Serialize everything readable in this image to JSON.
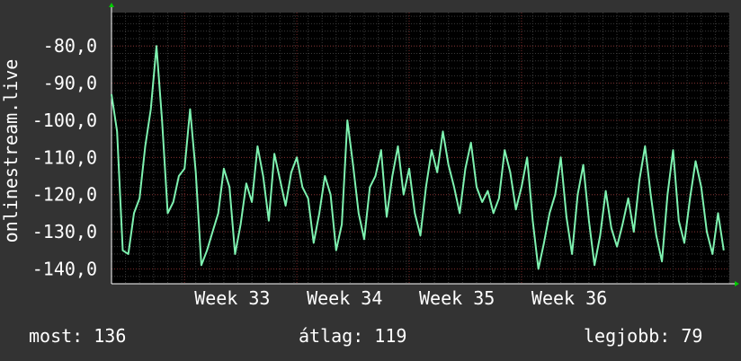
{
  "chart_data": {
    "type": "line",
    "ylabel": "onlinestream.live",
    "ylim": [
      -144,
      -71
    ],
    "y_ticks": [
      -80,
      -90,
      -100,
      -110,
      -120,
      -130,
      -140
    ],
    "y_tick_labels": [
      "-80,0",
      "-90,0",
      "-100,0",
      "-110,0",
      "-120,0",
      "-130,0",
      "-140,0"
    ],
    "x_range": [
      0,
      110
    ],
    "x_ticks": [
      {
        "x": 13,
        "label": "Week 33"
      },
      {
        "x": 33,
        "label": "Week 34"
      },
      {
        "x": 53,
        "label": "Week 35"
      },
      {
        "x": 73,
        "label": "Week 36"
      }
    ],
    "grid": true,
    "series": [
      {
        "values": [
          -93,
          -103,
          -135,
          -136,
          -125,
          -121,
          -107,
          -97,
          -80,
          -100,
          -125,
          -122,
          -115,
          -113,
          -97,
          -114,
          -139,
          -135,
          -130,
          -125,
          -113,
          -118,
          -136,
          -128,
          -117,
          -122,
          -107,
          -115,
          -127,
          -109,
          -116,
          -123,
          -114,
          -110,
          -118,
          -121,
          -133,
          -125,
          -115,
          -120,
          -135,
          -128,
          -100,
          -112,
          -125,
          -132,
          -118,
          -115,
          -108,
          -126,
          -115,
          -107,
          -120,
          -113,
          -125,
          -131,
          -118,
          -108,
          -114,
          -103,
          -112,
          -118,
          -125,
          -113,
          -106,
          -118,
          -122,
          -119,
          -125,
          -121,
          -108,
          -114,
          -124,
          -118,
          -110,
          -127,
          -140,
          -133,
          -125,
          -120,
          -110,
          -126,
          -136,
          -120,
          -112,
          -127,
          -139,
          -131,
          -119,
          -129,
          -134,
          -128,
          -121,
          -130,
          -116,
          -107,
          -120,
          -131,
          -138,
          -120,
          -108,
          -127,
          -133,
          -121,
          -111,
          -118,
          -130,
          -136,
          -125,
          -135
        ],
        "color": "#7ef2b0"
      }
    ]
  },
  "stats": {
    "current": "most: 136",
    "average": "átlag: 119",
    "best": "legjobb: 79"
  }
}
